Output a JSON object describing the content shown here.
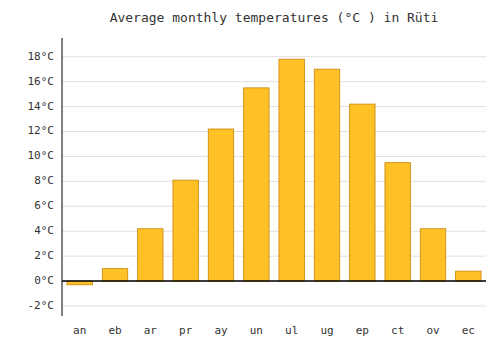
{
  "chart_data": {
    "type": "bar",
    "title": "Average monthly temperatures (°C ) in Rüti",
    "categories": [
      "an",
      "eb",
      "ar",
      "pr",
      "ay",
      "un",
      "ul",
      "ug",
      "ep",
      "ct",
      "ov",
      "ec"
    ],
    "values": [
      -0.3,
      1.0,
      4.2,
      8.1,
      12.2,
      15.5,
      17.8,
      17.0,
      14.2,
      9.5,
      4.2,
      0.8
    ],
    "color": "#FFC125",
    "ylim": [
      -2.8,
      19.5
    ],
    "yticks": [
      {
        "value": -2,
        "label": "-2°C"
      },
      {
        "value": 0,
        "label": "0°C"
      },
      {
        "value": 2,
        "label": "2°C"
      },
      {
        "value": 4,
        "label": "4°C"
      },
      {
        "value": 6,
        "label": "6°C"
      },
      {
        "value": 8,
        "label": "8°C"
      },
      {
        "value": 10,
        "label": "10°C"
      },
      {
        "value": 12,
        "label": "12°C"
      },
      {
        "value": 14,
        "label": "14°C"
      },
      {
        "value": 16,
        "label": "16°C"
      },
      {
        "value": 18,
        "label": "18°C"
      }
    ],
    "grid": true
  }
}
